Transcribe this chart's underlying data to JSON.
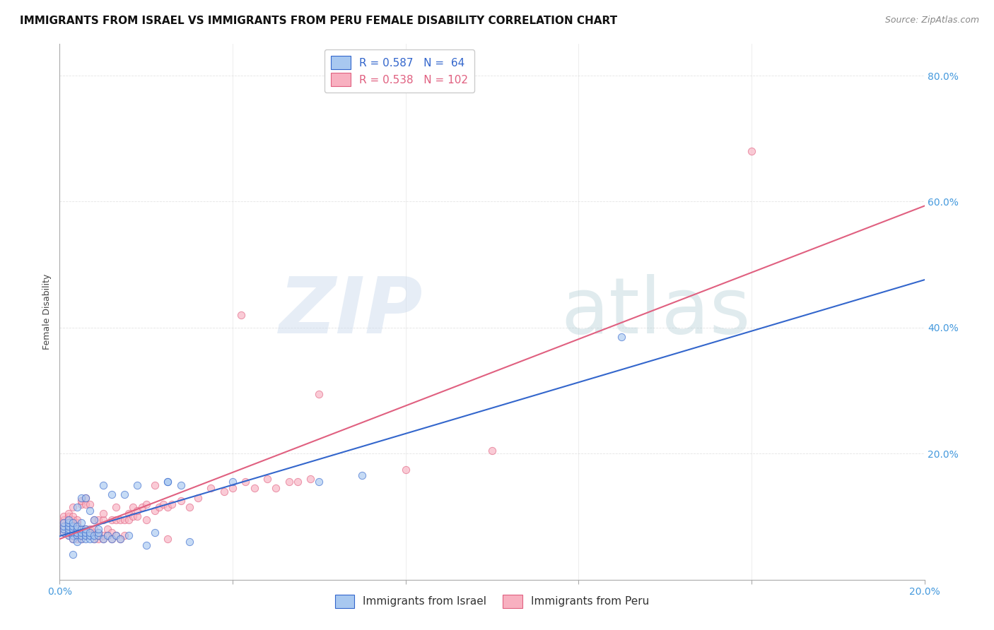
{
  "title": "IMMIGRANTS FROM ISRAEL VS IMMIGRANTS FROM PERU FEMALE DISABILITY CORRELATION CHART",
  "source": "Source: ZipAtlas.com",
  "xlabel_israel": "Immigrants from Israel",
  "xlabel_peru": "Immigrants from Peru",
  "ylabel": "Female Disability",
  "israel_R": 0.587,
  "israel_N": 64,
  "peru_R": 0.538,
  "peru_N": 102,
  "xlim": [
    0.0,
    0.2
  ],
  "ylim": [
    0.0,
    0.85
  ],
  "israel_color": "#A8C8F0",
  "peru_color": "#F8B0C0",
  "israel_line_color": "#3366CC",
  "peru_line_color": "#E06080",
  "x_ticks": [
    0.0,
    0.04,
    0.08,
    0.12,
    0.16,
    0.2
  ],
  "x_tick_labels": [
    "0.0%",
    "",
    "",
    "",
    "",
    "20.0%"
  ],
  "y_ticks": [
    0.0,
    0.2,
    0.4,
    0.6,
    0.8
  ],
  "y_tick_labels": [
    "",
    "20.0%",
    "40.0%",
    "60.0%",
    "80.0%"
  ],
  "title_fontsize": 11,
  "axis_label_fontsize": 9,
  "tick_fontsize": 10,
  "legend_fontsize": 11,
  "israel_scatter": [
    [
      0.001,
      0.075
    ],
    [
      0.001,
      0.08
    ],
    [
      0.001,
      0.085
    ],
    [
      0.001,
      0.09
    ],
    [
      0.002,
      0.07
    ],
    [
      0.002,
      0.075
    ],
    [
      0.002,
      0.08
    ],
    [
      0.002,
      0.085
    ],
    [
      0.002,
      0.09
    ],
    [
      0.002,
      0.095
    ],
    [
      0.003,
      0.07
    ],
    [
      0.003,
      0.075
    ],
    [
      0.003,
      0.08
    ],
    [
      0.003,
      0.085
    ],
    [
      0.003,
      0.09
    ],
    [
      0.003,
      0.065
    ],
    [
      0.004,
      0.07
    ],
    [
      0.004,
      0.075
    ],
    [
      0.004,
      0.08
    ],
    [
      0.004,
      0.085
    ],
    [
      0.004,
      0.06
    ],
    [
      0.004,
      0.115
    ],
    [
      0.005,
      0.065
    ],
    [
      0.005,
      0.07
    ],
    [
      0.005,
      0.075
    ],
    [
      0.005,
      0.08
    ],
    [
      0.005,
      0.09
    ],
    [
      0.005,
      0.13
    ],
    [
      0.006,
      0.065
    ],
    [
      0.006,
      0.07
    ],
    [
      0.006,
      0.075
    ],
    [
      0.006,
      0.08
    ],
    [
      0.006,
      0.13
    ],
    [
      0.007,
      0.065
    ],
    [
      0.007,
      0.07
    ],
    [
      0.007,
      0.075
    ],
    [
      0.007,
      0.11
    ],
    [
      0.008,
      0.065
    ],
    [
      0.008,
      0.07
    ],
    [
      0.008,
      0.095
    ],
    [
      0.009,
      0.07
    ],
    [
      0.009,
      0.075
    ],
    [
      0.009,
      0.08
    ],
    [
      0.01,
      0.065
    ],
    [
      0.01,
      0.15
    ],
    [
      0.011,
      0.07
    ],
    [
      0.012,
      0.065
    ],
    [
      0.012,
      0.135
    ],
    [
      0.013,
      0.07
    ],
    [
      0.014,
      0.065
    ],
    [
      0.015,
      0.135
    ],
    [
      0.016,
      0.07
    ],
    [
      0.018,
      0.15
    ],
    [
      0.02,
      0.055
    ],
    [
      0.022,
      0.075
    ],
    [
      0.025,
      0.155
    ],
    [
      0.025,
      0.155
    ],
    [
      0.028,
      0.15
    ],
    [
      0.03,
      0.06
    ],
    [
      0.04,
      0.155
    ],
    [
      0.06,
      0.155
    ],
    [
      0.07,
      0.165
    ],
    [
      0.13,
      0.385
    ],
    [
      0.003,
      0.04
    ]
  ],
  "peru_scatter": [
    [
      0.001,
      0.075
    ],
    [
      0.001,
      0.08
    ],
    [
      0.001,
      0.085
    ],
    [
      0.001,
      0.09
    ],
    [
      0.001,
      0.095
    ],
    [
      0.001,
      0.1
    ],
    [
      0.002,
      0.07
    ],
    [
      0.002,
      0.075
    ],
    [
      0.002,
      0.08
    ],
    [
      0.002,
      0.085
    ],
    [
      0.002,
      0.09
    ],
    [
      0.002,
      0.095
    ],
    [
      0.002,
      0.1
    ],
    [
      0.002,
      0.105
    ],
    [
      0.003,
      0.065
    ],
    [
      0.003,
      0.07
    ],
    [
      0.003,
      0.075
    ],
    [
      0.003,
      0.08
    ],
    [
      0.003,
      0.085
    ],
    [
      0.003,
      0.09
    ],
    [
      0.003,
      0.095
    ],
    [
      0.003,
      0.1
    ],
    [
      0.003,
      0.115
    ],
    [
      0.004,
      0.065
    ],
    [
      0.004,
      0.07
    ],
    [
      0.004,
      0.075
    ],
    [
      0.004,
      0.08
    ],
    [
      0.004,
      0.085
    ],
    [
      0.004,
      0.09
    ],
    [
      0.004,
      0.095
    ],
    [
      0.005,
      0.065
    ],
    [
      0.005,
      0.07
    ],
    [
      0.005,
      0.075
    ],
    [
      0.005,
      0.08
    ],
    [
      0.005,
      0.12
    ],
    [
      0.005,
      0.125
    ],
    [
      0.006,
      0.07
    ],
    [
      0.006,
      0.075
    ],
    [
      0.006,
      0.08
    ],
    [
      0.006,
      0.12
    ],
    [
      0.006,
      0.13
    ],
    [
      0.007,
      0.07
    ],
    [
      0.007,
      0.08
    ],
    [
      0.007,
      0.12
    ],
    [
      0.008,
      0.065
    ],
    [
      0.008,
      0.075
    ],
    [
      0.008,
      0.08
    ],
    [
      0.008,
      0.095
    ],
    [
      0.009,
      0.065
    ],
    [
      0.009,
      0.07
    ],
    [
      0.009,
      0.075
    ],
    [
      0.009,
      0.095
    ],
    [
      0.01,
      0.065
    ],
    [
      0.01,
      0.07
    ],
    [
      0.01,
      0.095
    ],
    [
      0.01,
      0.105
    ],
    [
      0.011,
      0.07
    ],
    [
      0.011,
      0.08
    ],
    [
      0.012,
      0.065
    ],
    [
      0.012,
      0.075
    ],
    [
      0.012,
      0.095
    ],
    [
      0.013,
      0.07
    ],
    [
      0.013,
      0.095
    ],
    [
      0.013,
      0.115
    ],
    [
      0.014,
      0.065
    ],
    [
      0.014,
      0.095
    ],
    [
      0.015,
      0.095
    ],
    [
      0.015,
      0.07
    ],
    [
      0.016,
      0.105
    ],
    [
      0.016,
      0.095
    ],
    [
      0.017,
      0.1
    ],
    [
      0.017,
      0.115
    ],
    [
      0.018,
      0.1
    ],
    [
      0.018,
      0.11
    ],
    [
      0.019,
      0.115
    ],
    [
      0.02,
      0.095
    ],
    [
      0.02,
      0.12
    ],
    [
      0.022,
      0.11
    ],
    [
      0.022,
      0.15
    ],
    [
      0.023,
      0.115
    ],
    [
      0.024,
      0.12
    ],
    [
      0.025,
      0.115
    ],
    [
      0.025,
      0.065
    ],
    [
      0.026,
      0.12
    ],
    [
      0.028,
      0.125
    ],
    [
      0.03,
      0.115
    ],
    [
      0.032,
      0.13
    ],
    [
      0.035,
      0.145
    ],
    [
      0.038,
      0.14
    ],
    [
      0.04,
      0.145
    ],
    [
      0.043,
      0.155
    ],
    [
      0.045,
      0.145
    ],
    [
      0.048,
      0.16
    ],
    [
      0.05,
      0.145
    ],
    [
      0.053,
      0.155
    ],
    [
      0.055,
      0.155
    ],
    [
      0.058,
      0.16
    ],
    [
      0.06,
      0.295
    ],
    [
      0.08,
      0.175
    ],
    [
      0.1,
      0.205
    ],
    [
      0.042,
      0.42
    ],
    [
      0.16,
      0.68
    ]
  ]
}
